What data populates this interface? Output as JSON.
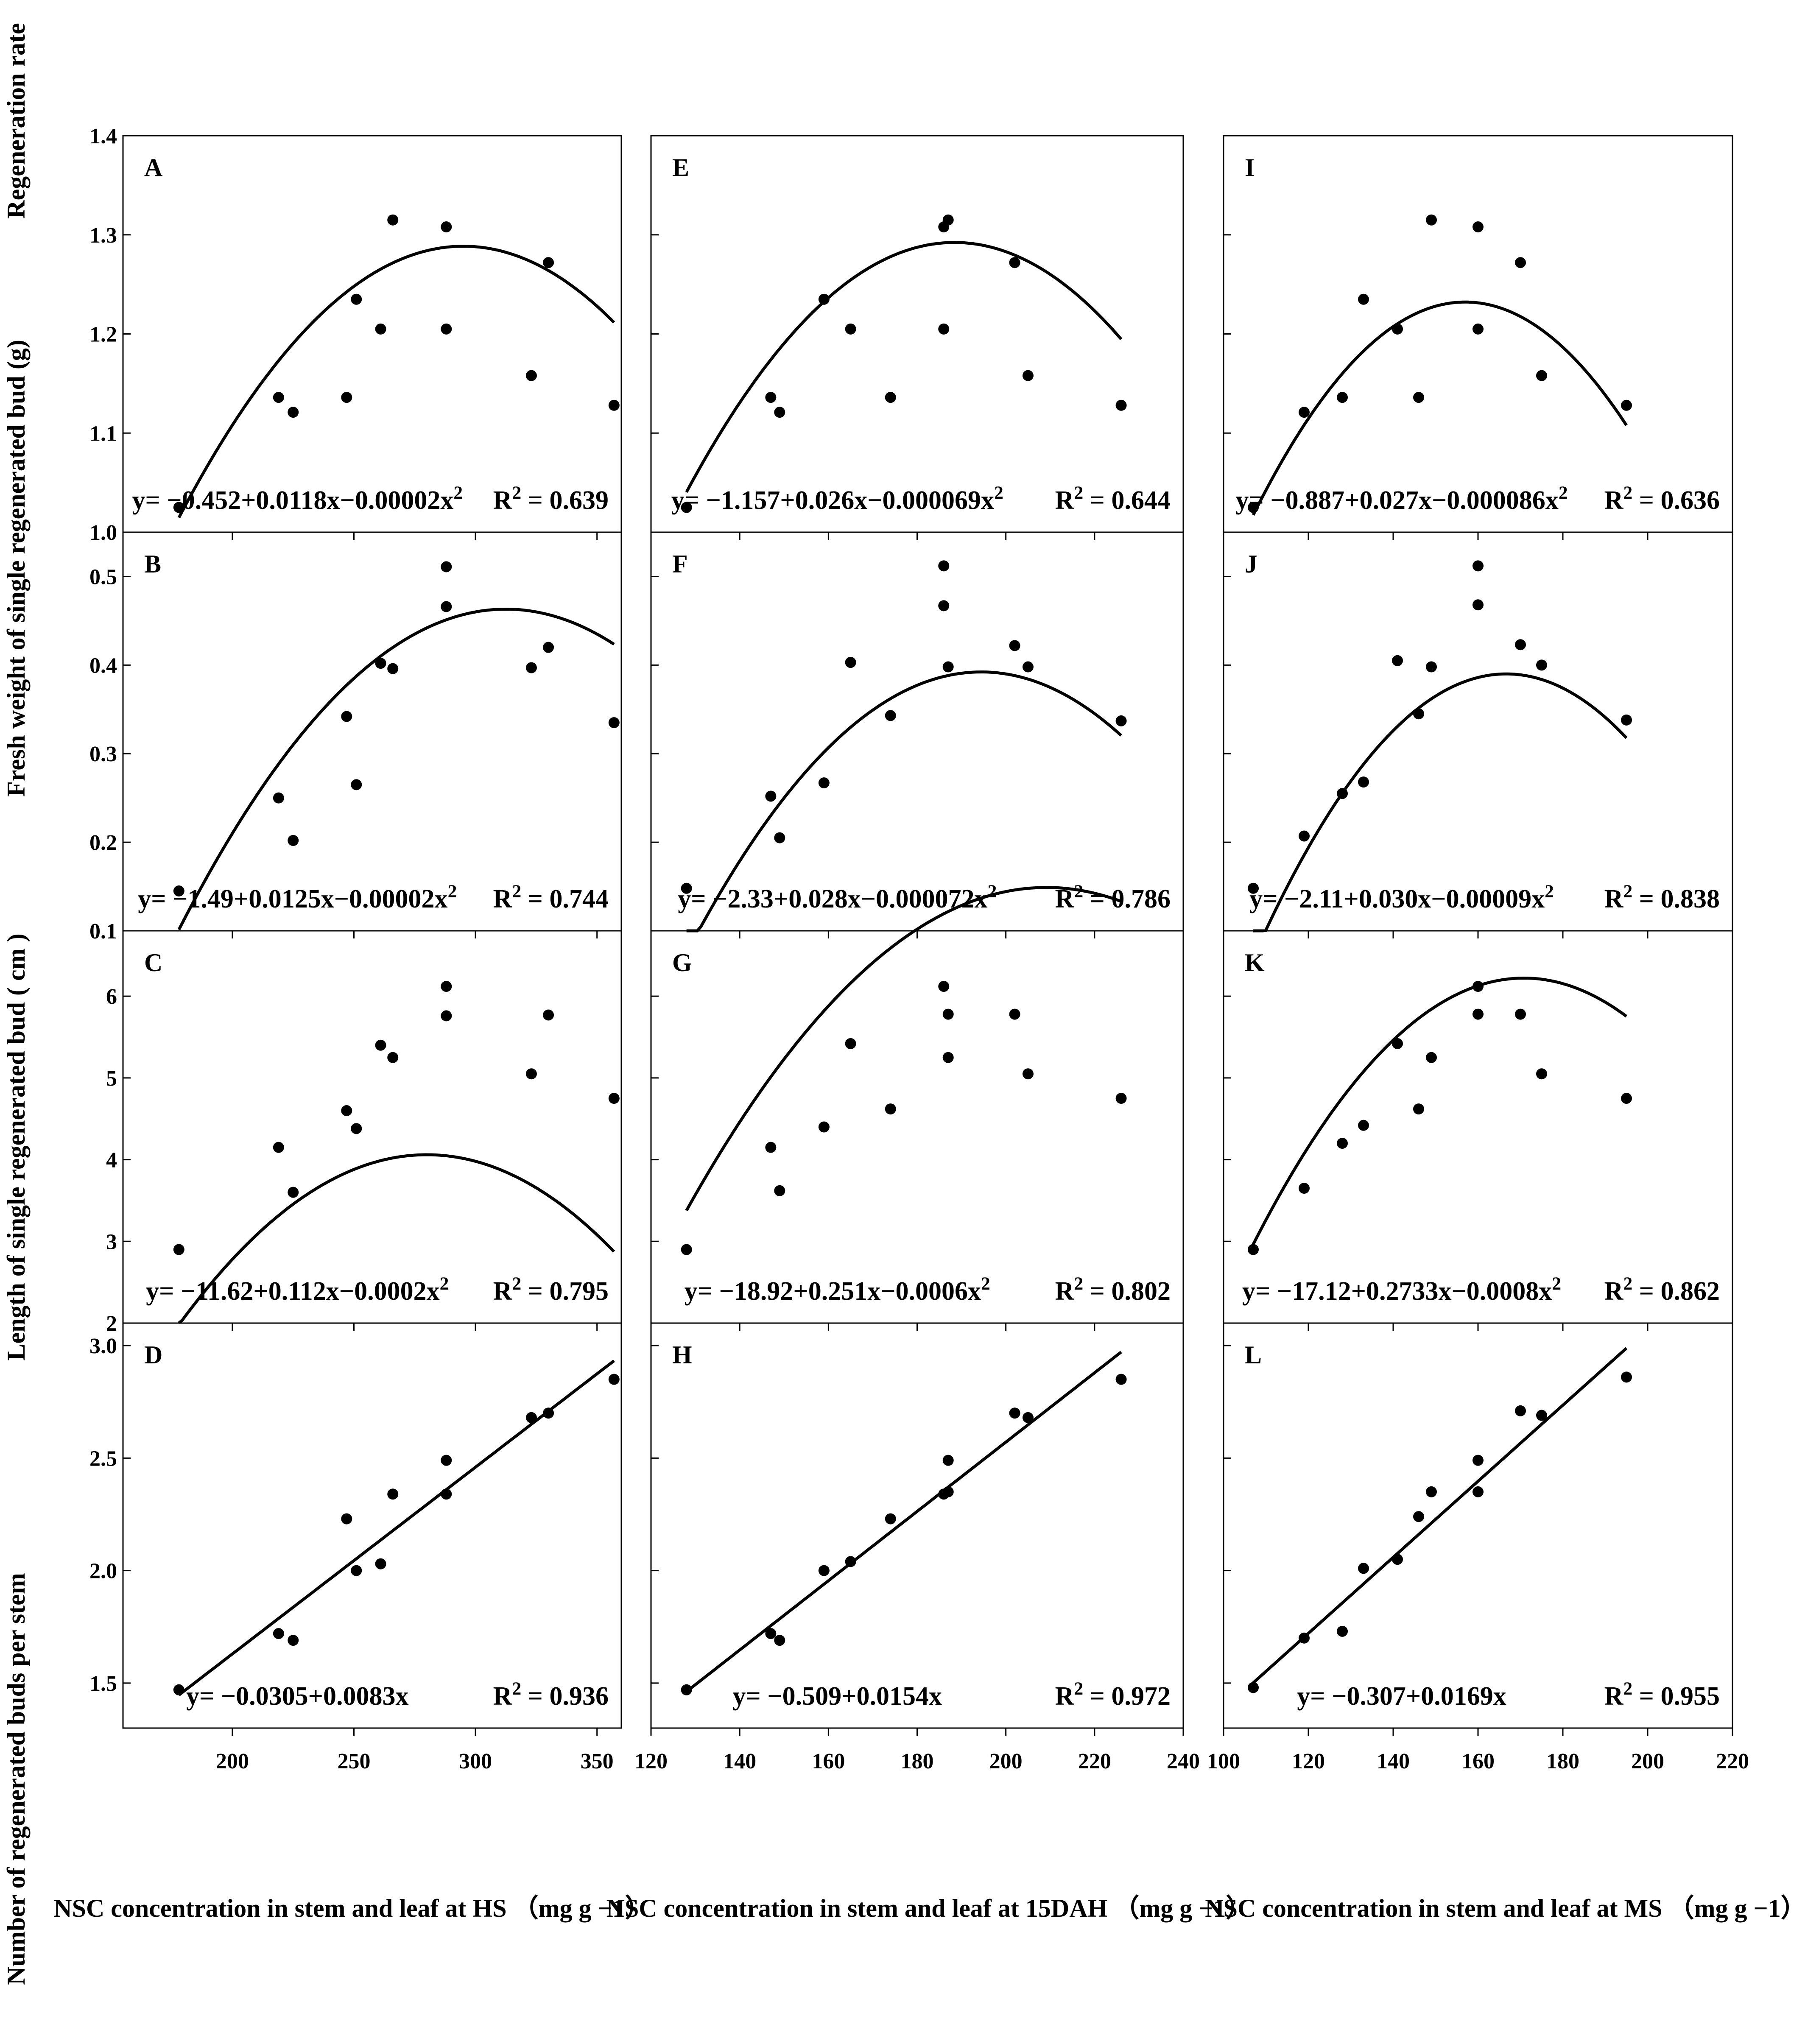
{
  "figure": {
    "y_labels": {
      "row1": "Regeneration rate",
      "row2": "Fresh weight of  single regenerated bud (g)",
      "row3": "Length of single regenerated bud ( cm )",
      "row4": "Number of  regenerated buds per  stem"
    },
    "x_labels": {
      "col1": "NSC concentration in stem and leaf at HS （mg g −1）",
      "col2": "NSC concentration in stem and leaf at 15DAH （mg g −1）",
      "col3": "NSC concentration in stem and leaf at MS （mg g −1）"
    }
  },
  "chart_data": [
    {
      "panel": "A",
      "type": "scatter",
      "fit": "quadratic",
      "equation": "y= −0.452+0.0118x−0.00002x²",
      "r2": "R² = 0.639",
      "coef": [
        -0.452,
        0.0118,
        -2e-05
      ],
      "xlim": [
        155,
        360
      ],
      "ylim": [
        1.0,
        1.4
      ],
      "xticks": [
        200,
        250,
        300,
        350
      ],
      "yticks": [
        1.0,
        1.1,
        1.2,
        1.3,
        1.4
      ],
      "show_xlabels": false,
      "show_ylabels": true,
      "x": [
        178,
        219,
        225,
        247,
        251,
        261,
        266,
        288,
        288,
        323,
        330,
        357
      ],
      "y": [
        1.025,
        1.136,
        1.121,
        1.136,
        1.235,
        1.205,
        1.315,
        1.308,
        1.205,
        1.158,
        1.272,
        1.128
      ],
      "fit_range": [
        178,
        357
      ]
    },
    {
      "panel": "E",
      "type": "scatter",
      "fit": "quadratic",
      "equation": "y= −1.157+0.026x−0.000069x²",
      "r2": "R² = 0.644",
      "coef": [
        -1.157,
        0.026,
        -6.9e-05
      ],
      "xlim": [
        120,
        240
      ],
      "ylim": [
        1.0,
        1.4
      ],
      "xticks": [
        120,
        140,
        160,
        180,
        200,
        220,
        240
      ],
      "yticks": [
        1.0,
        1.1,
        1.2,
        1.3,
        1.4
      ],
      "show_xlabels": false,
      "show_ylabels": false,
      "x": [
        128,
        147,
        149,
        159,
        165,
        174,
        186,
        187,
        186,
        202,
        205,
        226
      ],
      "y": [
        1.025,
        1.136,
        1.121,
        1.235,
        1.205,
        1.136,
        1.308,
        1.315,
        1.205,
        1.272,
        1.158,
        1.128
      ],
      "fit_range": [
        128,
        226
      ]
    },
    {
      "panel": "I",
      "type": "scatter",
      "fit": "quadratic",
      "equation": "y= −0.887+0.027x−0.000086x²",
      "r2": "R² = 0.636",
      "coef": [
        -0.887,
        0.027,
        -8.6e-05
      ],
      "xlim": [
        100,
        220
      ],
      "ylim": [
        1.0,
        1.4
      ],
      "xticks": [
        100,
        120,
        140,
        160,
        180,
        200,
        220
      ],
      "yticks": [
        1.0,
        1.1,
        1.2,
        1.3,
        1.4
      ],
      "show_xlabels": false,
      "show_ylabels": false,
      "x": [
        107,
        119,
        128,
        133,
        141,
        146,
        149,
        160,
        160,
        170,
        175,
        195
      ],
      "y": [
        1.025,
        1.121,
        1.136,
        1.235,
        1.205,
        1.136,
        1.315,
        1.308,
        1.205,
        1.272,
        1.158,
        1.128
      ],
      "fit_range": [
        107,
        195
      ]
    },
    {
      "panel": "B",
      "type": "scatter",
      "fit": "quadratic",
      "equation": "y= −1.49+0.0125x−0.00002x²",
      "r2": "R² = 0.744",
      "coef": [
        -1.49,
        0.0125,
        -2e-05
      ],
      "xlim": [
        155,
        360
      ],
      "ylim": [
        0.1,
        0.55
      ],
      "xticks": [
        200,
        250,
        300,
        350
      ],
      "yticks": [
        0.1,
        0.2,
        0.3,
        0.4,
        0.5
      ],
      "show_xlabels": false,
      "show_ylabels": true,
      "x": [
        178,
        219,
        225,
        247,
        251,
        261,
        266,
        288,
        288,
        323,
        330,
        357
      ],
      "y": [
        0.145,
        0.25,
        0.202,
        0.342,
        0.265,
        0.402,
        0.396,
        0.511,
        0.466,
        0.397,
        0.42,
        0.335
      ],
      "fit_range": [
        178,
        357
      ]
    },
    {
      "panel": "F",
      "type": "scatter",
      "fit": "quadratic",
      "equation": "y= −2.33+0.028x−0.000072x²",
      "r2": "R² = 0.786",
      "coef": [
        -2.33,
        0.028,
        -7.2e-05
      ],
      "xlim": [
        120,
        240
      ],
      "ylim": [
        0.1,
        0.55
      ],
      "xticks": [
        120,
        140,
        160,
        180,
        200,
        220,
        240
      ],
      "yticks": [
        0.1,
        0.2,
        0.3,
        0.4,
        0.5
      ],
      "show_xlabels": false,
      "show_ylabels": false,
      "x": [
        128,
        147,
        149,
        159,
        165,
        174,
        186,
        186,
        187,
        202,
        205,
        226
      ],
      "y": [
        0.148,
        0.252,
        0.205,
        0.267,
        0.403,
        0.343,
        0.512,
        0.467,
        0.398,
        0.422,
        0.398,
        0.337
      ],
      "fit_range": [
        128,
        226
      ]
    },
    {
      "panel": "J",
      "type": "scatter",
      "fit": "quadratic",
      "equation": "y= −2.11+0.030x−0.00009x²",
      "r2": "R² = 0.838",
      "coef": [
        -2.11,
        0.03,
        -9e-05
      ],
      "xlim": [
        100,
        220
      ],
      "ylim": [
        0.1,
        0.55
      ],
      "xticks": [
        100,
        120,
        140,
        160,
        180,
        200,
        220
      ],
      "yticks": [
        0.1,
        0.2,
        0.3,
        0.4,
        0.5
      ],
      "show_xlabels": false,
      "show_ylabels": false,
      "x": [
        107,
        119,
        128,
        133,
        141,
        146,
        149,
        160,
        160,
        170,
        175,
        195
      ],
      "y": [
        0.148,
        0.207,
        0.255,
        0.268,
        0.405,
        0.345,
        0.398,
        0.512,
        0.468,
        0.423,
        0.4,
        0.338
      ],
      "fit_range": [
        107,
        195
      ]
    },
    {
      "panel": "C",
      "type": "scatter",
      "fit": "quadratic",
      "equation": "y= −11.62+0.112x−0.0002x²",
      "r2": "R² = 0.795",
      "coef": [
        -11.62,
        0.112,
        -0.0002
      ],
      "xlim": [
        155,
        360
      ],
      "ylim": [
        2,
        6.8
      ],
      "xticks": [
        200,
        250,
        300,
        350
      ],
      "yticks": [
        2,
        3,
        4,
        5,
        6
      ],
      "show_xlabels": false,
      "show_ylabels": true,
      "x": [
        178,
        219,
        225,
        247,
        251,
        261,
        266,
        288,
        288,
        323,
        330,
        357
      ],
      "y": [
        2.9,
        4.15,
        3.6,
        4.6,
        4.38,
        5.4,
        5.25,
        6.12,
        5.76,
        5.05,
        5.77,
        4.75
      ],
      "fit_range": [
        178,
        357
      ]
    },
    {
      "panel": "G",
      "type": "scatter",
      "fit": "quadratic",
      "equation": "y= −18.92+0.251x−0.0006x²",
      "r2": "R² = 0.802",
      "coef": [
        -18.92,
        0.251,
        -0.0006
      ],
      "xlim": [
        120,
        240
      ],
      "ylim": [
        2,
        6.8
      ],
      "xticks": [
        120,
        140,
        160,
        180,
        200,
        220,
        240
      ],
      "yticks": [
        2,
        3,
        4,
        5,
        6
      ],
      "show_xlabels": false,
      "show_ylabels": false,
      "x": [
        128,
        147,
        149,
        159,
        165,
        174,
        186,
        187,
        187,
        202,
        205,
        226
      ],
      "y": [
        2.9,
        4.15,
        3.62,
        4.4,
        5.42,
        4.62,
        6.12,
        5.78,
        5.25,
        5.78,
        5.05,
        4.75
      ],
      "fit_range": [
        128,
        226
      ]
    },
    {
      "panel": "K",
      "type": "scatter",
      "fit": "quadratic",
      "equation": "y= −17.12+0.2733x−0.0008x²",
      "r2": "R² = 0.862",
      "coef": [
        -17.12,
        0.2733,
        -0.0008
      ],
      "xlim": [
        100,
        220
      ],
      "ylim": [
        2,
        6.8
      ],
      "xticks": [
        100,
        120,
        140,
        160,
        180,
        200,
        220
      ],
      "yticks": [
        2,
        3,
        4,
        5,
        6
      ],
      "show_xlabels": false,
      "show_ylabels": false,
      "x": [
        107,
        119,
        128,
        133,
        141,
        146,
        149,
        160,
        160,
        170,
        175,
        195
      ],
      "y": [
        2.9,
        3.65,
        4.2,
        4.42,
        5.42,
        4.62,
        5.25,
        6.12,
        5.78,
        5.78,
        5.05,
        4.75
      ],
      "fit_range": [
        107,
        195
      ]
    },
    {
      "panel": "D",
      "type": "scatter",
      "fit": "linear",
      "equation": "y= −0.0305+0.0083x",
      "r2": "R² = 0.936",
      "coef": [
        -0.0305,
        0.0083
      ],
      "xlim": [
        155,
        360
      ],
      "ylim": [
        1.3,
        3.1
      ],
      "xticks": [
        200,
        250,
        300,
        350
      ],
      "yticks": [
        1.5,
        2.0,
        2.5,
        3.0
      ],
      "show_xlabels": true,
      "show_ylabels": true,
      "x": [
        178,
        219,
        225,
        247,
        251,
        261,
        266,
        288,
        288,
        323,
        330,
        357
      ],
      "y": [
        1.47,
        1.72,
        1.69,
        2.23,
        2.0,
        2.03,
        2.34,
        2.49,
        2.34,
        2.68,
        2.7,
        2.85
      ],
      "fit_range": [
        178,
        357
      ]
    },
    {
      "panel": "H",
      "type": "scatter",
      "fit": "linear",
      "equation": "y= −0.509+0.0154x",
      "r2": "R² = 0.972",
      "coef": [
        -0.509,
        0.0154
      ],
      "xlim": [
        120,
        240
      ],
      "ylim": [
        1.3,
        3.1
      ],
      "xticks": [
        120,
        140,
        160,
        180,
        200,
        220,
        240
      ],
      "yticks": [
        1.5,
        2.0,
        2.5,
        3.0
      ],
      "show_xlabels": true,
      "show_ylabels": false,
      "x": [
        128,
        147,
        149,
        159,
        165,
        174,
        186,
        187,
        187,
        202,
        205,
        226
      ],
      "y": [
        1.47,
        1.72,
        1.69,
        2.0,
        2.04,
        2.23,
        2.34,
        2.35,
        2.49,
        2.7,
        2.68,
        2.85
      ],
      "fit_range": [
        128,
        226
      ]
    },
    {
      "panel": "L",
      "type": "scatter",
      "fit": "linear",
      "equation": "y= −0.307+0.0169x",
      "r2": "R² = 0.955",
      "coef": [
        -0.307,
        0.0169
      ],
      "xlim": [
        100,
        220
      ],
      "ylim": [
        1.3,
        3.1
      ],
      "xticks": [
        100,
        120,
        140,
        160,
        180,
        200,
        220
      ],
      "yticks": [
        1.5,
        2.0,
        2.5,
        3.0
      ],
      "show_xlabels": true,
      "show_ylabels": false,
      "x": [
        107,
        119,
        128,
        133,
        141,
        146,
        149,
        160,
        160,
        170,
        175,
        195
      ],
      "y": [
        1.48,
        1.7,
        1.73,
        2.01,
        2.05,
        2.24,
        2.35,
        2.35,
        2.49,
        2.71,
        2.69,
        2.86
      ],
      "fit_range": [
        107,
        195
      ]
    }
  ]
}
